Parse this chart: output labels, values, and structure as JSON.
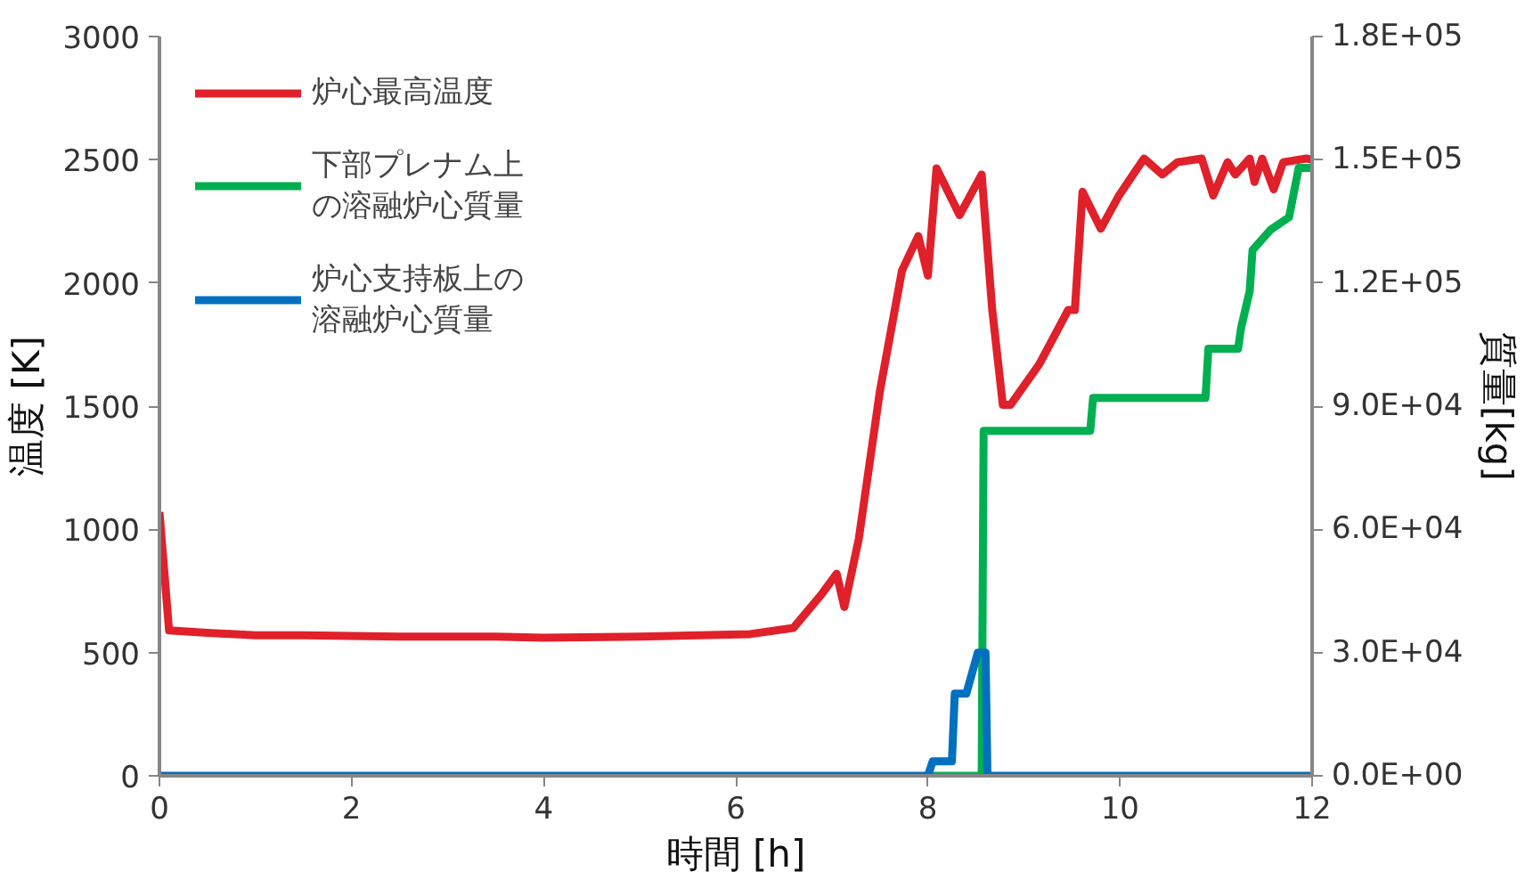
{
  "chart_data": {
    "type": "line",
    "xlabel": "時間 [h]",
    "ylabel": "温度 [K]",
    "y2label": "質量[kg]",
    "xlim": [
      0,
      12
    ],
    "xticks": [
      0,
      2,
      4,
      6,
      8,
      10,
      12
    ],
    "ylim": [
      0,
      3000
    ],
    "yticks": [
      0,
      500,
      1000,
      1500,
      2000,
      2500,
      3000
    ],
    "y2lim": [
      0,
      180000
    ],
    "y2ticks": [
      {
        "value": 0,
        "label": "0.0E+00"
      },
      {
        "value": 30000,
        "label": "3.0E+04"
      },
      {
        "value": 60000,
        "label": "6.0E+04"
      },
      {
        "value": 90000,
        "label": "9.0E+04"
      },
      {
        "value": 120000,
        "label": "1.2E+05"
      },
      {
        "value": 150000,
        "label": "1.5E+05"
      },
      {
        "value": 180000,
        "label": "1.8E+05"
      }
    ],
    "grid": false,
    "legend": "top left",
    "marker": "none",
    "line_style": "solid",
    "series": [
      {
        "name": "炉心最高温度",
        "color": "#e0202a",
        "x": [
          0,
          0.1,
          0.5,
          1.0,
          1.5,
          2.5,
          3.5,
          4.0,
          5.0,
          6.15,
          6.6,
          6.9,
          7.05,
          7.13,
          7.28,
          7.5,
          7.73,
          7.9,
          8.0,
          8.09,
          8.33,
          8.56,
          8.67,
          8.78,
          8.86,
          9.16,
          9.46,
          9.53,
          9.61,
          9.8,
          9.99,
          10.25,
          10.44,
          10.6,
          10.85,
          10.97,
          11.12,
          11.2,
          11.35,
          11.4,
          11.48,
          11.6,
          11.7,
          11.94,
          12
        ],
        "values": [
          1070,
          590,
          580,
          570,
          570,
          565,
          565,
          560,
          565,
          575,
          600,
          740,
          820,
          685,
          960,
          1560,
          2050,
          2190,
          2030,
          2465,
          2275,
          2440,
          1890,
          1505,
          1505,
          1670,
          1890,
          1890,
          2370,
          2220,
          2355,
          2505,
          2440,
          2490,
          2505,
          2355,
          2490,
          2440,
          2505,
          2410,
          2505,
          2380,
          2490,
          2505,
          2500
        ]
      },
      {
        "name": "下部プレナム上の溶融炉心質量",
        "color": "#00b050",
        "axis": "y2",
        "x": [
          8.0,
          8.56,
          8.58,
          9.69,
          9.72,
          10.89,
          10.92,
          11.23,
          11.26,
          11.35,
          11.38,
          11.57,
          11.76,
          11.86,
          12
        ],
        "values": [
          0,
          0,
          84000,
          84000,
          92000,
          92000,
          104000,
          104000,
          109000,
          118000,
          128000,
          133000,
          136000,
          148000,
          148000
        ]
      },
      {
        "name": "炉心支持板上の溶融炉心質量",
        "color": "#0070c0",
        "axis": "y2",
        "x": [
          0,
          8.0,
          8.05,
          8.25,
          8.28,
          8.4,
          8.52,
          8.6,
          8.62,
          12
        ],
        "values": [
          0,
          0,
          3500,
          3500,
          20000,
          20000,
          30000,
          30000,
          0,
          0
        ]
      }
    ]
  }
}
